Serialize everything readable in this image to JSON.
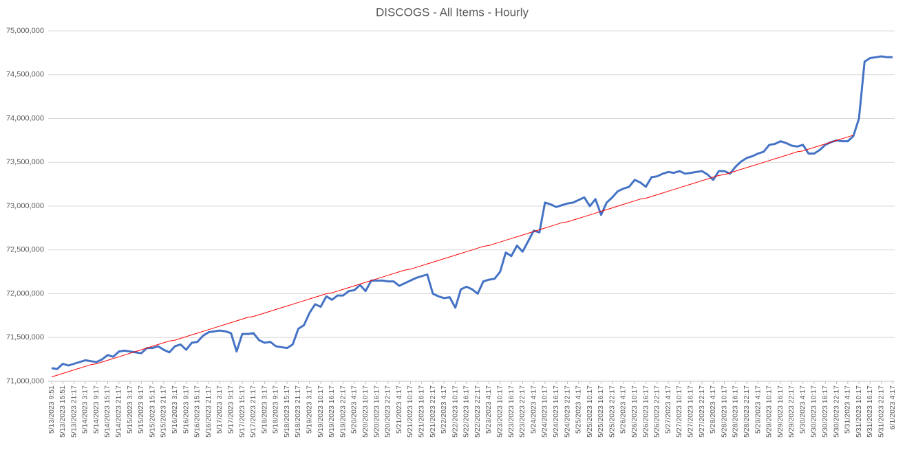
{
  "chart_data": {
    "type": "line",
    "title": "DISCOGS - All Items - Hourly",
    "categories": [
      "5/13/2023 9:51",
      null,
      "5/13/2023 15:51",
      null,
      "5/13/2023 21:17",
      null,
      "5/14/2023 3:17",
      null,
      "5/14/2023 9:17",
      null,
      "5/14/2023 15:17",
      null,
      "5/14/2023 21:17",
      null,
      "5/15/2023 3:17",
      null,
      "5/15/2023 9:17",
      null,
      "5/15/2023 15:17",
      null,
      "5/15/2023 21:17",
      null,
      "5/16/2023 3:17",
      null,
      "5/16/2023 9:17",
      null,
      "5/16/2023 15:17",
      null,
      "5/16/2023 21:17",
      null,
      "5/17/2023 3:17",
      null,
      "5/17/2023 9:17",
      null,
      "5/17/2023 15:17",
      null,
      "5/17/2023 21:17",
      null,
      "5/18/2023 3:17",
      null,
      "5/18/2023 9:17",
      null,
      "5/18/2023 15:17",
      null,
      "5/18/2023 21:17",
      null,
      "5/19/2023 3:17",
      null,
      "5/19/2023 10:17",
      null,
      "5/19/2023 16:17",
      null,
      "5/19/2023 22:17",
      null,
      "5/20/2023 4:17",
      null,
      "5/20/2023 10:17",
      null,
      "5/20/2023 16:17",
      null,
      "5/20/2023 22:17",
      null,
      "5/21/2023 4:17",
      null,
      "5/21/2023 10:17",
      null,
      "5/21/2023 16:17",
      null,
      "5/21/2023 22:17",
      null,
      "5/22/2023 4:17",
      null,
      "5/22/2023 10:17",
      null,
      "5/22/2023 16:17",
      null,
      "5/22/2023 22:17",
      null,
      "5/23/2023 4:17",
      null,
      "5/23/2023 10:17",
      null,
      "5/23/2023 16:17",
      null,
      "5/23/2023 22:17",
      null,
      "5/24/2023 4:17",
      null,
      "5/24/2023 10:17",
      null,
      "5/24/2023 16:17",
      null,
      "5/24/2023 22:17",
      null,
      "5/25/2023 4:17",
      null,
      "5/25/2023 10:17",
      null,
      "5/25/2023 16:17",
      null,
      "5/25/2023 22:17",
      null,
      "5/26/2023 4:17",
      null,
      "5/26/2023 10:17",
      null,
      "5/26/2023 16:17",
      null,
      "5/26/2023 22:17",
      null,
      "5/27/2023 4:17",
      null,
      "5/27/2023 10:17",
      null,
      "5/27/2023 16:17",
      null,
      "5/27/2023 22:17",
      null,
      "5/28/2023 4:17",
      null,
      "5/28/2023 10:17",
      null,
      "5/28/2023 16:17",
      null,
      "5/28/2023 22:17",
      null,
      "5/29/2023 4:17",
      null,
      "5/29/2023 10:17",
      null,
      "5/29/2023 16:17",
      null,
      "5/29/2023 22:17",
      null,
      "5/30/2023 4:17",
      null,
      "5/30/2023 10:17",
      null,
      "5/30/2023 16:17",
      null,
      "5/30/2023 22:17",
      null,
      "5/31/2023 4:17",
      null,
      "5/31/2023 10:17",
      null,
      "5/31/2023 16:17",
      null,
      "5/31/2023 22:17",
      null,
      "6/1/2023 4:17"
    ],
    "series": [
      {
        "color": "#4472c4",
        "values": [
          71150000,
          71140000,
          71200000,
          71180000,
          71200000,
          71220000,
          71240000,
          71230000,
          71220000,
          71250000,
          71300000,
          71280000,
          71340000,
          71350000,
          71340000,
          71330000,
          71320000,
          71380000,
          71380000,
          71400000,
          71360000,
          71330000,
          71400000,
          71420000,
          71360000,
          71440000,
          71450000,
          71520000,
          71560000,
          71570000,
          71580000,
          71570000,
          71550000,
          71340000,
          71540000,
          71540000,
          71550000,
          71470000,
          71440000,
          71450000,
          71400000,
          71390000,
          71380000,
          71420000,
          71600000,
          71640000,
          71780000,
          71880000,
          71850000,
          71970000,
          71930000,
          71980000,
          71980000,
          72030000,
          72040000,
          72100000,
          72030000,
          72150000,
          72150000,
          72150000,
          72140000,
          72140000,
          72090000,
          72120000,
          72150000,
          72180000,
          72200000,
          72220000,
          72000000,
          71970000,
          71950000,
          71960000,
          71840000,
          72050000,
          72080000,
          72050000,
          72000000,
          72140000,
          72160000,
          72170000,
          72250000,
          72470000,
          72430000,
          72550000,
          72480000,
          72600000,
          72720000,
          72700000,
          73040000,
          73020000,
          72990000,
          73010000,
          73030000,
          73040000,
          73070000,
          73100000,
          73000000,
          73080000,
          72900000,
          73040000,
          73100000,
          73170000,
          73200000,
          73220000,
          73300000,
          73270000,
          73220000,
          73330000,
          73340000,
          73370000,
          73390000,
          73380000,
          73400000,
          73370000,
          73380000,
          73390000,
          73400000,
          73360000,
          73300000,
          73400000,
          73400000,
          73370000,
          73450000,
          73510000,
          73550000,
          73570000,
          73600000,
          73620000,
          73700000,
          73710000,
          73740000,
          73720000,
          73690000,
          73680000,
          73700000,
          73600000,
          73600000,
          73640000,
          73700000,
          73730000,
          73750000,
          73740000,
          73740000,
          73800000,
          74000000,
          74650000,
          74690000,
          74700000,
          74710000,
          74700000,
          74700000
        ]
      },
      {
        "color": "#ff0000",
        "values": [
          71050000,
          71070000,
          71090000,
          71110000,
          71130000,
          71150000,
          71170000,
          71190000,
          71200000,
          71220000,
          71240000,
          71260000,
          71280000,
          71300000,
          71320000,
          71340000,
          71360000,
          71380000,
          71400000,
          71420000,
          71440000,
          71460000,
          71470000,
          71490000,
          71510000,
          71530000,
          71550000,
          71570000,
          71590000,
          71610000,
          71630000,
          71650000,
          71670000,
          71690000,
          71710000,
          71730000,
          71740000,
          71760000,
          71780000,
          71800000,
          71820000,
          71840000,
          71860000,
          71880000,
          71900000,
          71920000,
          71940000,
          71960000,
          71980000,
          72000000,
          72010000,
          72030000,
          72050000,
          72070000,
          72090000,
          72110000,
          72130000,
          72150000,
          72170000,
          72190000,
          72210000,
          72230000,
          72250000,
          72270000,
          72280000,
          72300000,
          72320000,
          72340000,
          72360000,
          72380000,
          72400000,
          72420000,
          72440000,
          72460000,
          72480000,
          72500000,
          72520000,
          72540000,
          72550000,
          72570000,
          72590000,
          72610000,
          72630000,
          72650000,
          72670000,
          72690000,
          72710000,
          72730000,
          72750000,
          72770000,
          72790000,
          72810000,
          72820000,
          72840000,
          72860000,
          72880000,
          72900000,
          72920000,
          72940000,
          72960000,
          72980000,
          73000000,
          73020000,
          73040000,
          73060000,
          73080000,
          73090000,
          73110000,
          73130000,
          73150000,
          73170000,
          73190000,
          73210000,
          73230000,
          73250000,
          73270000,
          73290000,
          73310000,
          73330000,
          73350000,
          73360000,
          73380000,
          73400000,
          73420000,
          73440000,
          73460000,
          73480000,
          73500000,
          73520000,
          73540000,
          73560000,
          73580000,
          73600000,
          73620000,
          73630000,
          73650000,
          73670000,
          73690000,
          73710000,
          73730000,
          73750000,
          73770000,
          73790000,
          73810000,
          null,
          null,
          null,
          null,
          null,
          null,
          null
        ]
      }
    ],
    "ylim": [
      71000000,
      75000000
    ],
    "yticks": [
      {
        "value": 71000000,
        "label": "71,000,000"
      },
      {
        "value": 71500000,
        "label": "71,500,000"
      },
      {
        "value": 72000000,
        "label": "72,000,000"
      },
      {
        "value": 72500000,
        "label": "72,500,000"
      },
      {
        "value": 73000000,
        "label": "73,000,000"
      },
      {
        "value": 73500000,
        "label": "73,500,000"
      },
      {
        "value": 74000000,
        "label": "74,000,000"
      },
      {
        "value": 74500000,
        "label": "74,500,000"
      },
      {
        "value": 75000000,
        "label": "75,000,000"
      }
    ],
    "grid": true
  }
}
